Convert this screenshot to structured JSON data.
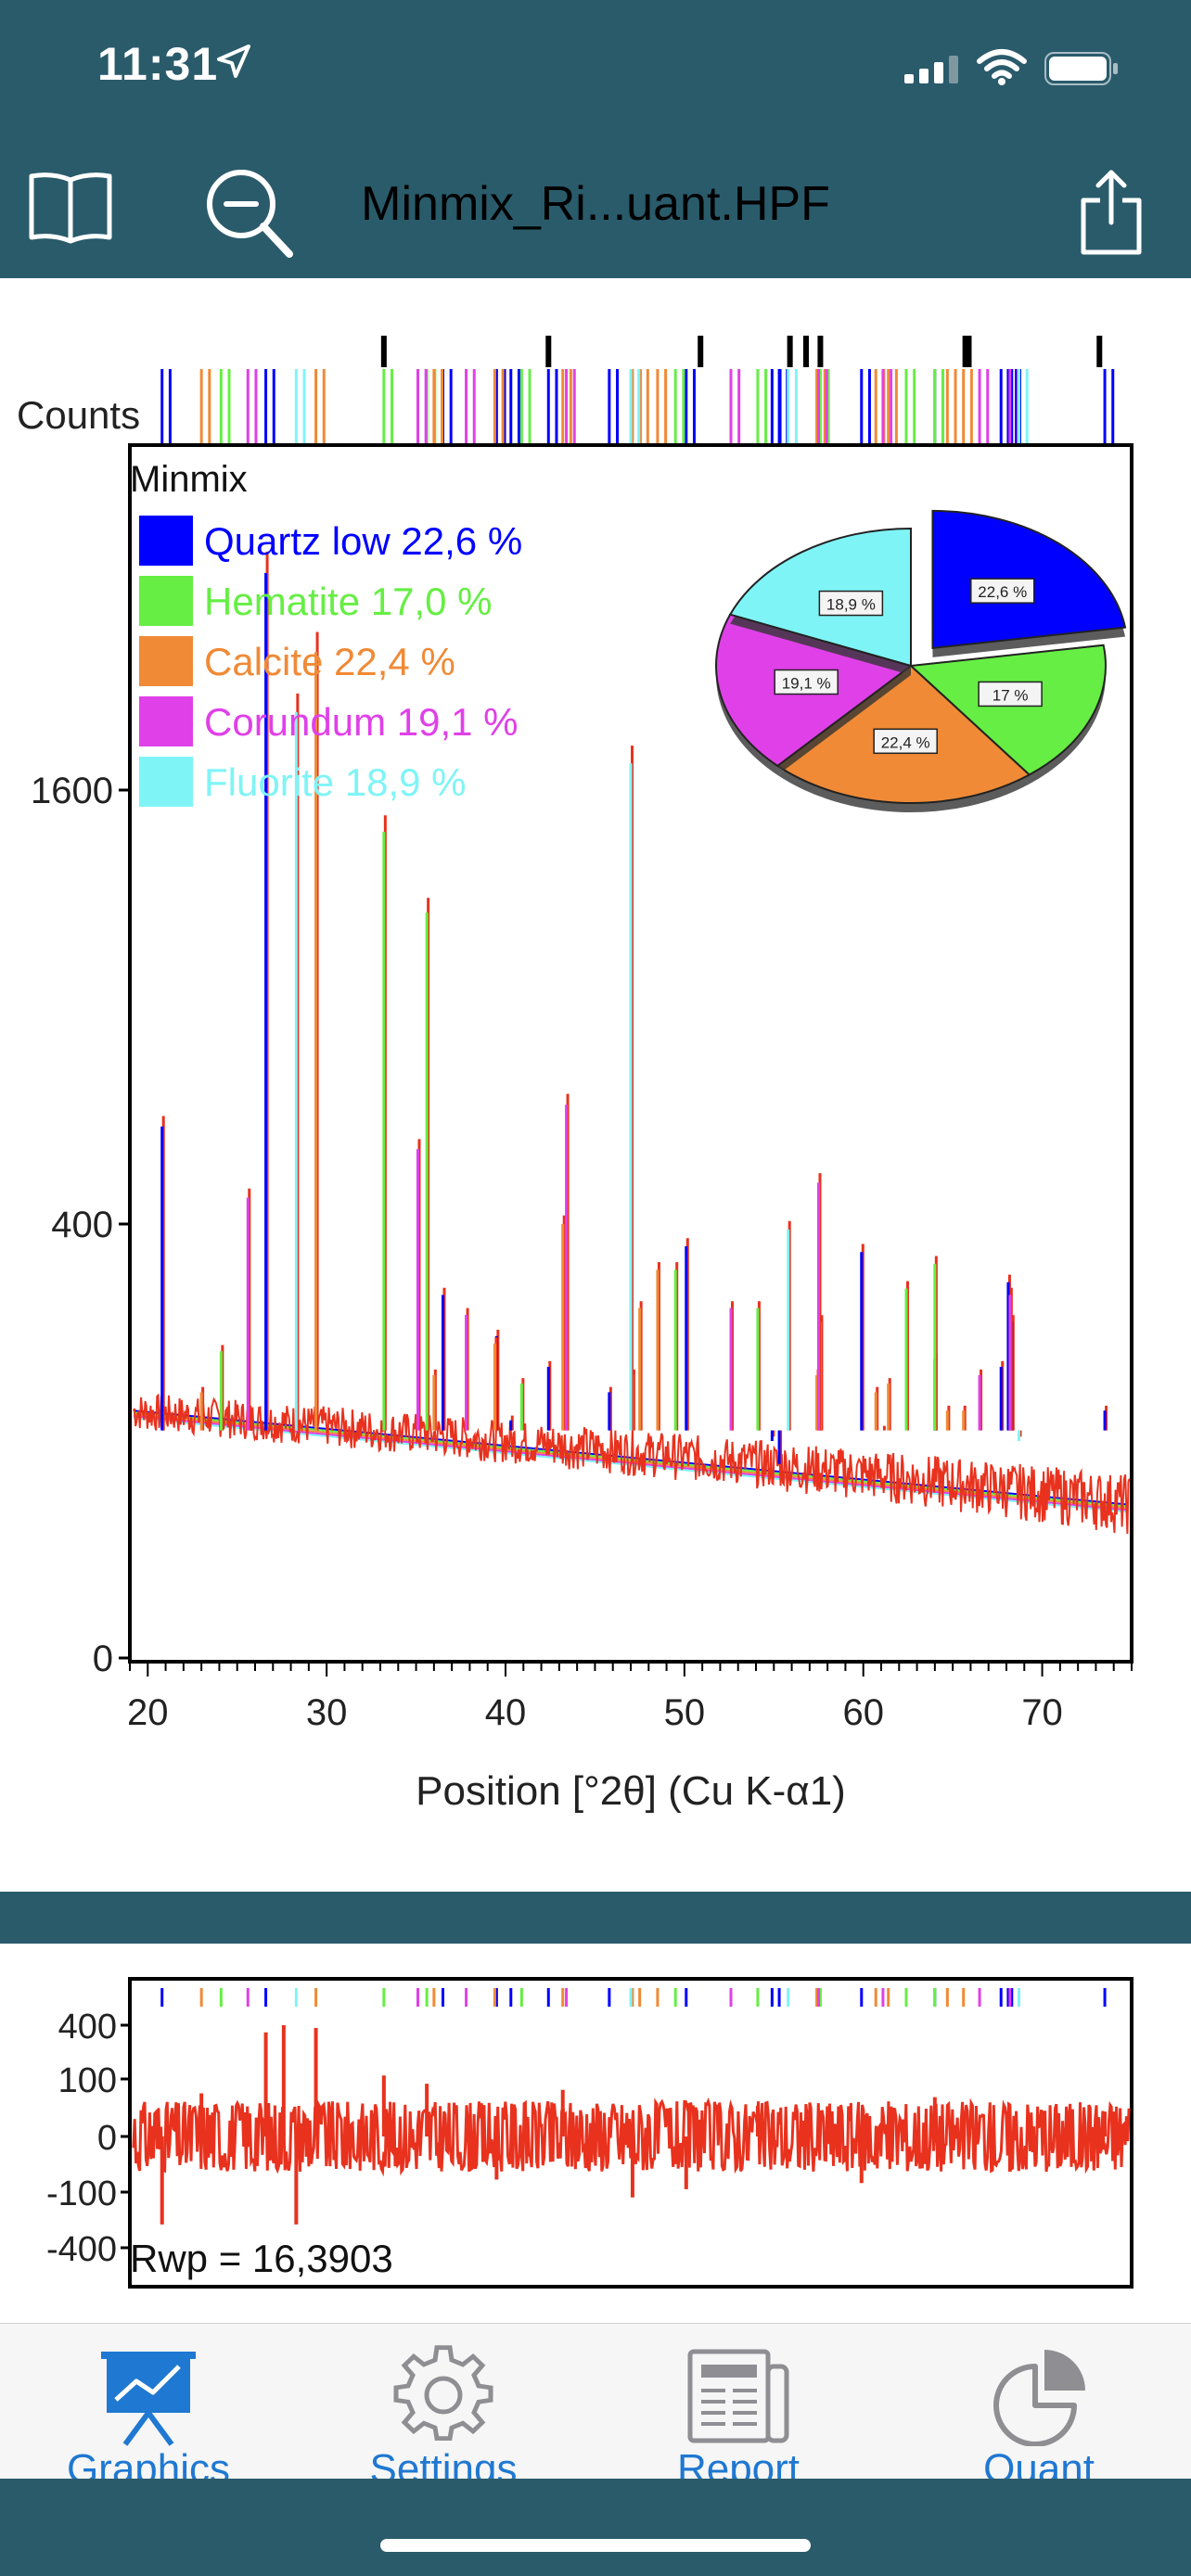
{
  "status_bar": {
    "time": "11:31"
  },
  "nav": {
    "title": "Minmix_Ri...uant.HPF"
  },
  "main_chart": {
    "y_axis_label": "Counts",
    "x_axis_label": "Position [°2θ] (Cu K-α1)",
    "sample_name": "Minmix",
    "y_ticks": [
      "0",
      "400",
      "1600"
    ],
    "x_ticks": [
      "20",
      "30",
      "40",
      "50",
      "60",
      "70"
    ]
  },
  "diff_chart": {
    "y_ticks": [
      "400",
      "100",
      "0",
      "-100",
      "-400"
    ],
    "rwp_label": "Rwp = 16,3903"
  },
  "tabs": [
    {
      "label": "Graphics",
      "active": true
    },
    {
      "label": "Settings",
      "active": false
    },
    {
      "label": "Report",
      "active": false
    },
    {
      "label": "Quant",
      "active": false
    }
  ],
  "colors": {
    "bar": "#2a5b6b",
    "accent": "#1f78d1",
    "observed": "#e8321e",
    "calculated": "#0000ff"
  },
  "chart_data": [
    {
      "type": "line",
      "x_range": [
        19,
        75
      ],
      "y_scale": "sqrt",
      "y_ticks": [
        0,
        400,
        1600
      ],
      "xlabel": "Position [°2θ] (Cu K-α1)",
      "ylabel": "Counts",
      "series": [
        {
          "name": "Quartz low 22,6 %",
          "color": "#0000ff",
          "x": [
            20.8,
            26.6,
            36.5,
            39.5,
            40.3,
            42.4,
            45.8,
            50.1,
            54.9,
            55.3,
            59.9,
            64.0,
            67.7,
            68.1,
            68.3,
            73.5
          ],
          "y": [
            600,
            2500,
            280,
            220,
            120,
            180,
            150,
            360,
            100,
            80,
            350,
            190,
            180,
            300,
            240,
            130
          ]
        },
        {
          "name": "Hematite 17,0 %",
          "color": "#66ee44",
          "x": [
            24.1,
            33.2,
            35.6,
            40.9,
            49.5,
            54.1,
            57.6,
            62.4,
            64.0
          ],
          "y": [
            200,
            1450,
            1180,
            160,
            320,
            260,
            240,
            290,
            330
          ]
        },
        {
          "name": "Calcite 22,4 %",
          "color": "#f08a36",
          "x": [
            23.0,
            29.4,
            36.0,
            39.4,
            43.2,
            47.1,
            47.5,
            48.5,
            57.4,
            60.7,
            61.4,
            64.7,
            65.6
          ],
          "y": [
            150,
            2150,
            170,
            210,
            400,
            170,
            260,
            320,
            170,
            150,
            160,
            130,
            130
          ]
        },
        {
          "name": "Corundum 19,1 %",
          "color": "#e040e8",
          "x": [
            25.6,
            35.1,
            37.8,
            43.4,
            52.6,
            57.5,
            61.1,
            66.5,
            68.2
          ],
          "y": [
            450,
            550,
            250,
            650,
            260,
            480,
            110,
            170,
            280
          ]
        },
        {
          "name": "Fluorite 18,9 %",
          "color": "#7ff4f6",
          "x": [
            28.3,
            47.0,
            55.8,
            68.7
          ],
          "y": [
            1900,
            1700,
            390,
            100
          ]
        }
      ],
      "pie": {
        "values": [
          22.6,
          17.0,
          22.4,
          19.1,
          18.9
        ],
        "labels": [
          "22,6 %",
          "17 %",
          "22,4 %",
          "19,1 %",
          "18,9 %"
        ]
      }
    },
    {
      "type": "line",
      "x_range": [
        19,
        75
      ],
      "y_ticks": [
        400,
        100,
        0,
        -100,
        -400
      ],
      "series": [
        {
          "name": "Rwp = 16,3903",
          "color": "#e8321e",
          "x": [
            20.8,
            23.0,
            26.6,
            27.6,
            28.3,
            29.4,
            33.2,
            35.6,
            39.5,
            43.2,
            47.1,
            50.1,
            54.1,
            59.9,
            64.0,
            68.2,
            73.5
          ],
          "y": [
            -250,
            60,
            350,
            400,
            -250,
            380,
            120,
            90,
            -60,
            70,
            -120,
            -90,
            30,
            -70,
            50,
            -40,
            20
          ]
        }
      ]
    }
  ]
}
